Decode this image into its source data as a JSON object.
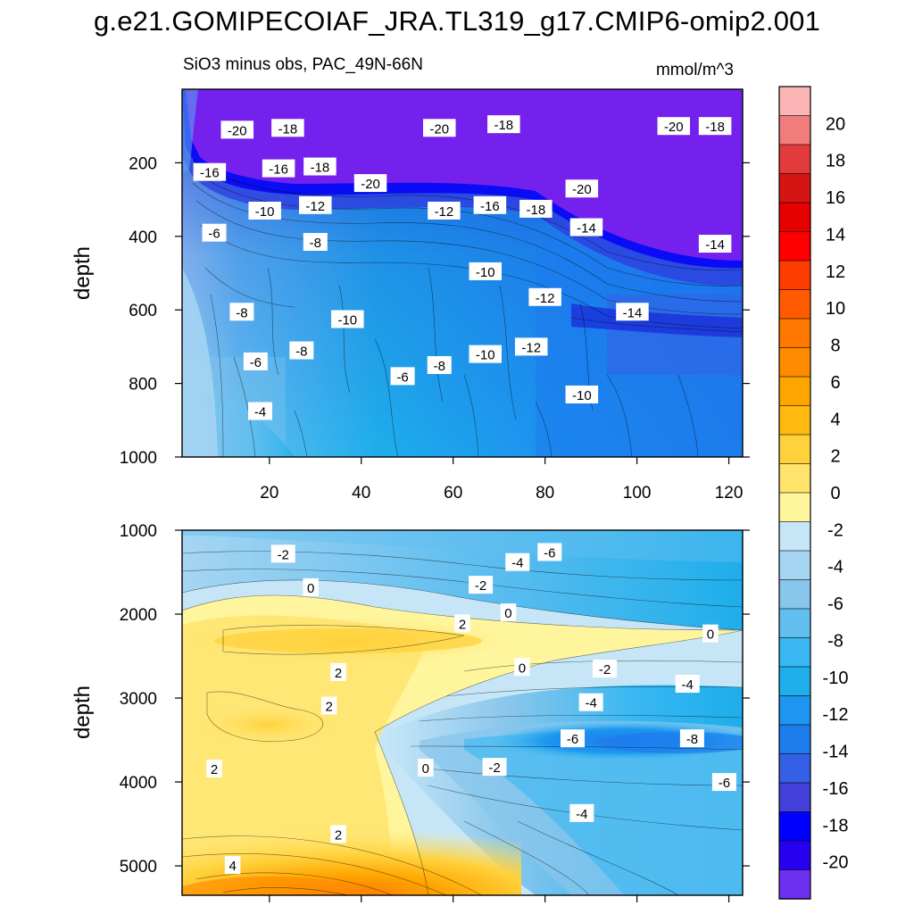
{
  "figure": {
    "title": "g.e21.GOMIPECOIAF_JRA.TL319_g17.CMIP6-omip2.001",
    "subtitle_left": "SiO3 minus obs, PAC_49N-66N",
    "subtitle_right": "mmol/m^3"
  },
  "chart_data": [
    {
      "type": "heatmap",
      "panel": "upper",
      "title": "SiO3 minus obs, PAC_49N-66N",
      "units": "mmol/m^3",
      "xlabel": "",
      "ylabel": "depth",
      "xlim": [
        1,
        123
      ],
      "ylim": [
        1000,
        0
      ],
      "xticks": [
        20,
        40,
        60,
        80,
        100,
        120
      ],
      "yticks": [
        200,
        400,
        600,
        800,
        1000
      ],
      "contour_labels": [
        {
          "value": "-20",
          "x": 13,
          "depth": 110
        },
        {
          "value": "-18",
          "x": 24,
          "depth": 105
        },
        {
          "value": "-20",
          "x": 57,
          "depth": 105
        },
        {
          "value": "-18",
          "x": 71,
          "depth": 95
        },
        {
          "value": "-20",
          "x": 108,
          "depth": 100
        },
        {
          "value": "-18",
          "x": 117,
          "depth": 100
        },
        {
          "value": "-16",
          "x": 7,
          "depth": 225
        },
        {
          "value": "-16",
          "x": 22,
          "depth": 215
        },
        {
          "value": "-18",
          "x": 31,
          "depth": 210
        },
        {
          "value": "-20",
          "x": 42,
          "depth": 255
        },
        {
          "value": "-10",
          "x": 19,
          "depth": 330
        },
        {
          "value": "-12",
          "x": 30,
          "depth": 315
        },
        {
          "value": "-12",
          "x": 58,
          "depth": 330
        },
        {
          "value": "-16",
          "x": 68,
          "depth": 315
        },
        {
          "value": "-18",
          "x": 78,
          "depth": 325
        },
        {
          "value": "-20",
          "x": 88,
          "depth": 270
        },
        {
          "value": "-6",
          "x": 8,
          "depth": 390
        },
        {
          "value": "-8",
          "x": 30,
          "depth": 415
        },
        {
          "value": "-14",
          "x": 89,
          "depth": 375
        },
        {
          "value": "-14",
          "x": 117,
          "depth": 420
        },
        {
          "value": "-10",
          "x": 67,
          "depth": 495
        },
        {
          "value": "-12",
          "x": 80,
          "depth": 565
        },
        {
          "value": "-8",
          "x": 14,
          "depth": 605
        },
        {
          "value": "-14",
          "x": 99,
          "depth": 605
        },
        {
          "value": "-10",
          "x": 37,
          "depth": 625
        },
        {
          "value": "-8",
          "x": 27,
          "depth": 710
        },
        {
          "value": "-12",
          "x": 77,
          "depth": 700
        },
        {
          "value": "-10",
          "x": 67,
          "depth": 720
        },
        {
          "value": "-6",
          "x": 17,
          "depth": 740
        },
        {
          "value": "-8",
          "x": 57,
          "depth": 750
        },
        {
          "value": "-6",
          "x": 49,
          "depth": 780
        },
        {
          "value": "-10",
          "x": 88,
          "depth": 830
        },
        {
          "value": "-4",
          "x": 18,
          "depth": 875
        }
      ]
    },
    {
      "type": "heatmap",
      "panel": "lower",
      "xlabel": "",
      "ylabel": "depth",
      "xlim": [
        1,
        123
      ],
      "ylim": [
        5350,
        1000
      ],
      "yticks": [
        1000,
        2000,
        3000,
        4000,
        5000
      ],
      "contour_labels": [
        {
          "value": "-2",
          "x": 23,
          "depth": 1280
        },
        {
          "value": "-4",
          "x": 74,
          "depth": 1380
        },
        {
          "value": "-6",
          "x": 81,
          "depth": 1260
        },
        {
          "value": "0",
          "x": 29,
          "depth": 1680
        },
        {
          "value": "-2",
          "x": 66,
          "depth": 1650
        },
        {
          "value": "0",
          "x": 72,
          "depth": 1980
        },
        {
          "value": "2",
          "x": 62,
          "depth": 2110
        },
        {
          "value": "0",
          "x": 116,
          "depth": 2230
        },
        {
          "value": "2",
          "x": 35,
          "depth": 2690
        },
        {
          "value": "0",
          "x": 75,
          "depth": 2630
        },
        {
          "value": "-2",
          "x": 93,
          "depth": 2650
        },
        {
          "value": "-4",
          "x": 111,
          "depth": 2830
        },
        {
          "value": "2",
          "x": 33,
          "depth": 3090
        },
        {
          "value": "-4",
          "x": 90,
          "depth": 3050
        },
        {
          "value": "-6",
          "x": 86,
          "depth": 3480
        },
        {
          "value": "-8",
          "x": 112,
          "depth": 3480
        },
        {
          "value": "2",
          "x": 8,
          "depth": 3840
        },
        {
          "value": "0",
          "x": 54,
          "depth": 3830
        },
        {
          "value": "-2",
          "x": 69,
          "depth": 3820
        },
        {
          "value": "-6",
          "x": 119,
          "depth": 4000
        },
        {
          "value": "-4",
          "x": 88,
          "depth": 4370
        },
        {
          "value": "2",
          "x": 35,
          "depth": 4620
        },
        {
          "value": "4",
          "x": 12,
          "depth": 4990
        }
      ]
    }
  ],
  "colorbar": {
    "labels": [
      "20",
      "18",
      "16",
      "14",
      "12",
      "10",
      "8",
      "6",
      "4",
      "2",
      "0",
      "-2",
      "-4",
      "-6",
      "-8",
      "-10",
      "-12",
      "-14",
      "-16",
      "-18",
      "-20"
    ],
    "colors": [
      "#fbb4b4",
      "#f07c7c",
      "#e33b3b",
      "#d51414",
      "#e60000",
      "#ff0000",
      "#ff3c00",
      "#ff5a00",
      "#ff7800",
      "#ff8c00",
      "#ffa500",
      "#ffb90f",
      "#ffd23c",
      "#ffe36b",
      "#fff59d",
      "#c6e6f7",
      "#a6d5f2",
      "#88c6ec",
      "#62bff0",
      "#38b7f2",
      "#1eaeeb",
      "#1c96f0",
      "#1e7ced",
      "#3560e5",
      "#4240d8",
      "#0000ff",
      "#2700f0",
      "#6d2ff0"
    ]
  }
}
